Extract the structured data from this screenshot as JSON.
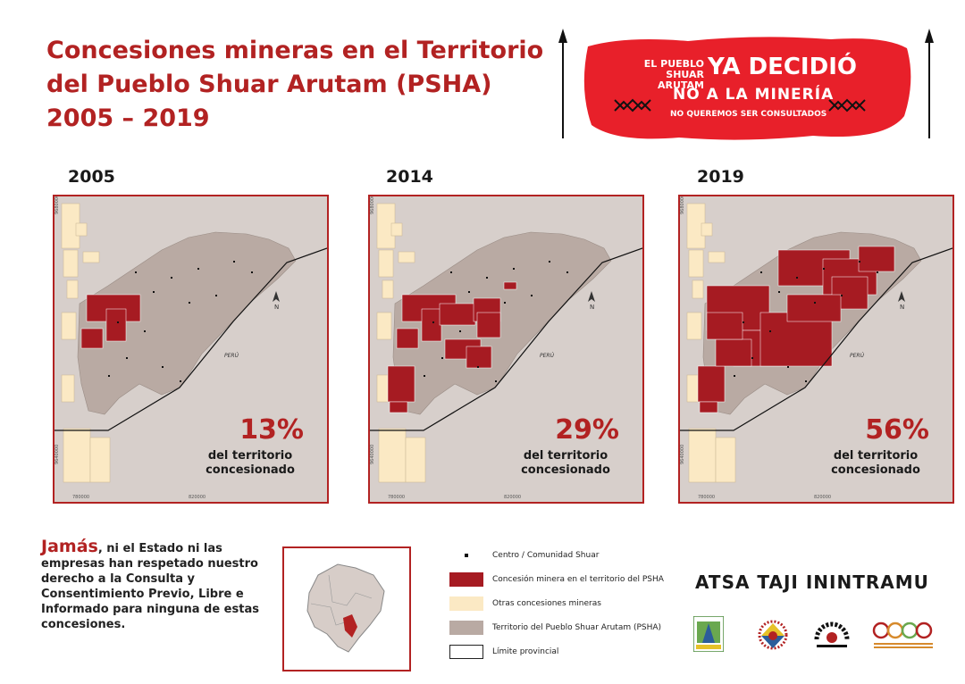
{
  "title": {
    "line1": "Concesiones mineras en el Territorio",
    "line2": "del Pueblo Shuar Arutam (PSHA)",
    "line3": "2005 – 2019"
  },
  "banner": {
    "small1": "EL PUEBLO",
    "small2": "SHUAR ARUTAM",
    "big": "YA DECIDIÓ",
    "mid": "NO A LA MINERÍA",
    "sub": "NO QUEREMOS SER CONSULTADOS"
  },
  "maps": [
    {
      "year": "2005",
      "percent": "13%",
      "label1": "del territorio",
      "label2": "concesionado",
      "tick_left": "780000",
      "tick_right": "820000",
      "tick_y1": "9680000",
      "tick_y2": "9640000",
      "peru": "PERÚ",
      "north": "N"
    },
    {
      "year": "2014",
      "percent": "29%",
      "label1": "del territorio",
      "label2": "concesionado",
      "tick_left": "780000",
      "tick_right": "820000",
      "tick_y1": "9680000",
      "tick_y2": "9640000",
      "peru": "PERÚ",
      "north": "N"
    },
    {
      "year": "2019",
      "percent": "56%",
      "label1": "del territorio",
      "label2": "concesionado",
      "tick_left": "780000",
      "tick_right": "820000",
      "tick_y1": "9680000",
      "tick_y2": "9640000",
      "peru": "PERÚ",
      "north": "N"
    }
  ],
  "bottom_text": {
    "highlight": "Jamás",
    "rest": ", ni el Estado ni las empresas han respetado nuestro derecho  a la  Consulta y Consentimiento Previo, Libre e Informado para ninguna de estas concesiones."
  },
  "legend": [
    {
      "label": "Centro / Comunidad Shuar",
      "color": "#111111"
    },
    {
      "label": "Concesión minera en el territorio del PSHA",
      "color": "#a61b22"
    },
    {
      "label": "Otras concesiones mineras",
      "color": "#fbe9c4"
    },
    {
      "label": "Territorio del Pueblo Shuar Arutam (PSHA)",
      "color": "#b9aaa3"
    },
    {
      "label": "Límite provincial",
      "color": "#ffffff"
    }
  ],
  "organization": "ATSA TAJI ININTRAMU",
  "colors": {
    "accent": "#b22222",
    "concession": "#a61b22",
    "other": "#fbe9c4",
    "territory": "#b9aaa3",
    "banner": "#e8202a"
  }
}
